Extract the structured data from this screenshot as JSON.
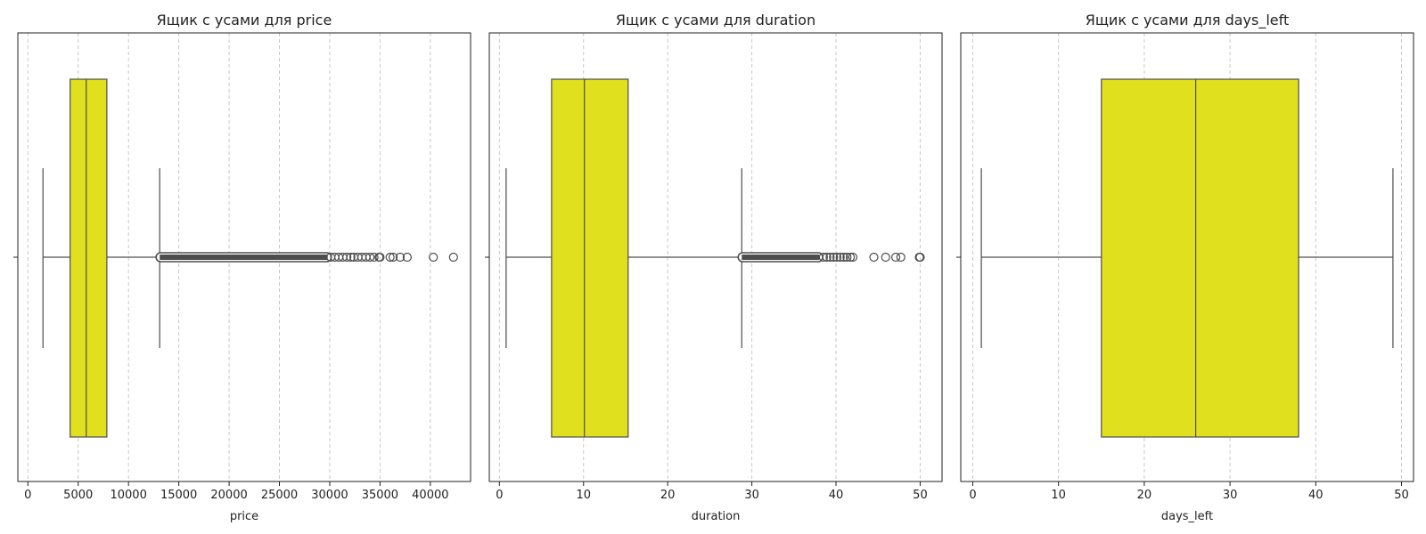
{
  "chart_data": [
    {
      "type": "boxplot",
      "title": "Ящик с усами для price",
      "xlabel": "price",
      "ylabel": "",
      "xlim": [
        -1000,
        44000
      ],
      "xticks": [
        0,
        5000,
        10000,
        15000,
        20000,
        25000,
        30000,
        35000,
        40000
      ],
      "grid": "vertical-dashed",
      "box_color": "#e0e01e",
      "line_color": "#4d4d4d",
      "box": {
        "whisker_low": 1500,
        "q1": 4200,
        "median": 5800,
        "q3": 7850,
        "whisker_high": 13100
      },
      "outlier_range": [
        13100,
        29800
      ],
      "outliers": [
        30100,
        30500,
        30900,
        31300,
        31700,
        32100,
        32400,
        32800,
        33200,
        33600,
        34000,
        34400,
        34900,
        35000,
        36000,
        36300,
        37000,
        37700,
        40300,
        42300
      ]
    },
    {
      "type": "boxplot",
      "title": "Ящик с усами для duration",
      "xlabel": "duration",
      "ylabel": "",
      "xlim": [
        -1.2,
        52.6
      ],
      "xticks": [
        0,
        10,
        20,
        30,
        40,
        50
      ],
      "grid": "vertical-dashed",
      "box_color": "#e0e01e",
      "line_color": "#4d4d4d",
      "box": {
        "whisker_low": 0.8,
        "q1": 6.2,
        "median": 10.1,
        "q3": 15.3,
        "whisker_high": 28.8
      },
      "outlier_range": [
        28.8,
        38.0
      ],
      "outliers": [
        38.5,
        38.9,
        39.3,
        39.7,
        40.1,
        40.5,
        40.9,
        41.3,
        41.7,
        42.0,
        44.5,
        45.9,
        47.1,
        47.7,
        49.9,
        50.0
      ]
    },
    {
      "type": "boxplot",
      "title": "Ящик с усами для days_left",
      "xlabel": "days_left",
      "ylabel": "",
      "xlim": [
        -1.4,
        51.4
      ],
      "xticks": [
        0,
        10,
        20,
        30,
        40,
        50
      ],
      "grid": "vertical-dashed",
      "box_color": "#e0e01e",
      "line_color": "#4d4d4d",
      "box": {
        "whisker_low": 1,
        "q1": 15,
        "median": 26,
        "q3": 38,
        "whisker_high": 49
      },
      "outlier_range": null,
      "outliers": []
    }
  ]
}
